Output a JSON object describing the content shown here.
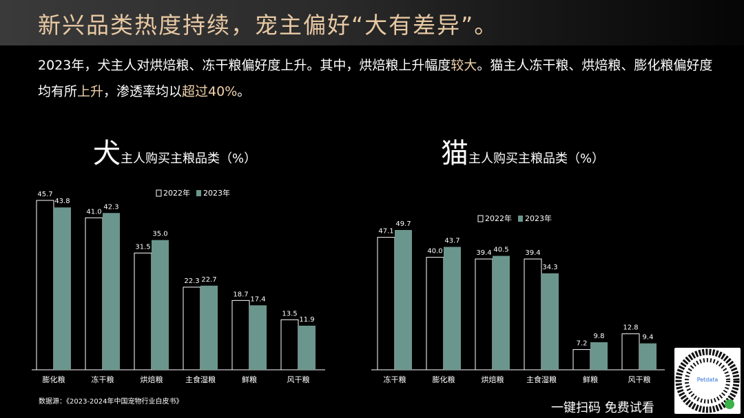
{
  "title": "新兴品类热度持续，宠主偏好“大有差异”。",
  "summary": {
    "p1": "2023年，犬主人对烘焙粮、冻干粮偏好度上升。其中，烘焙粮上升幅度",
    "h1": "较大",
    "p2": "。猫主人冻干粮、烘焙粮、膨化粮偏好度均有所",
    "h2": "上升",
    "p3": "，渗透率均以",
    "h3": "超过40%",
    "p4": "。"
  },
  "source": "数据源：《2023-2024年中国宠物行业白皮书》",
  "cta": "一键扫码 免费试看",
  "qr": {
    "brand": "Petdata"
  },
  "colors": {
    "bar2022_fill": "#000000",
    "bar2022_stroke": "#ffffff",
    "bar2023_fill": "#6b968d",
    "title": "#e8c9a4",
    "highlight": "#f2d3ad"
  },
  "chart_data": [
    {
      "type": "bar",
      "title_big": "犬",
      "title_rest": "主人购买主粮品类（%）",
      "categories": [
        "膨化粮",
        "冻干粮",
        "烘焙粮",
        "主食湿粮",
        "鲜粮",
        "风干粮"
      ],
      "series": [
        {
          "name": "2022年",
          "values": [
            45.7,
            41.0,
            31.5,
            22.3,
            18.7,
            13.5
          ]
        },
        {
          "name": "2023年",
          "values": [
            43.8,
            42.3,
            35.0,
            22.7,
            17.4,
            11.9
          ]
        }
      ],
      "ylim": [
        0,
        45.7
      ],
      "legend": "top-center",
      "grid": false
    },
    {
      "type": "bar",
      "title_big": "猫",
      "title_rest": "主人购买主粮品类（%）",
      "categories": [
        "冻干粮",
        "膨化粮",
        "烘焙粮",
        "主食湿粮",
        "鲜粮",
        "风干粮"
      ],
      "series": [
        {
          "name": "2022年",
          "values": [
            47.1,
            40.0,
            39.4,
            39.4,
            7.2,
            12.8
          ]
        },
        {
          "name": "2023年",
          "values": [
            49.7,
            43.7,
            40.5,
            34.3,
            9.8,
            9.4
          ]
        }
      ],
      "ylim": [
        0,
        49.7
      ],
      "legend": "top-center",
      "grid": false
    }
  ]
}
